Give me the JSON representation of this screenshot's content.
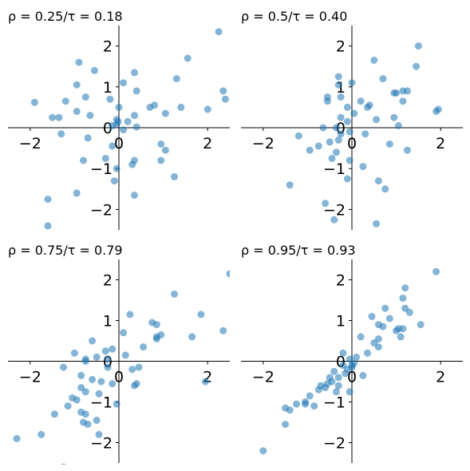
{
  "chart_data": [
    {
      "type": "scatter",
      "title": "ρ = 0.25/τ = 0.18",
      "xlim": [
        -2.5,
        2.5
      ],
      "ylim": [
        -2.5,
        2.5
      ],
      "xticks": [
        "−2",
        "0",
        "2"
      ],
      "yticks": [
        "−2",
        "−1",
        "0",
        "1",
        "2"
      ],
      "marker_color": "#1f77b4",
      "points": [
        [
          2.25,
          2.35
        ],
        [
          1.55,
          1.7
        ],
        [
          -0.9,
          1.6
        ],
        [
          -0.55,
          1.4
        ],
        [
          0.35,
          1.35
        ],
        [
          1.3,
          1.2
        ],
        [
          0.1,
          1.1
        ],
        [
          -0.95,
          1.05
        ],
        [
          0.4,
          0.9
        ],
        [
          2.35,
          0.9
        ],
        [
          -0.75,
          0.75
        ],
        [
          -0.2,
          0.7
        ],
        [
          2.4,
          0.7
        ],
        [
          -1.2,
          0.65
        ],
        [
          -1.9,
          0.62
        ],
        [
          0.8,
          0.55
        ],
        [
          0.7,
          0.5
        ],
        [
          1.4,
          0.5
        ],
        [
          2.0,
          0.45
        ],
        [
          0.0,
          0.5
        ],
        [
          -0.05,
          0.2
        ],
        [
          -0.95,
          0.4
        ],
        [
          1.05,
          0.35
        ],
        [
          -0.65,
          0.3
        ],
        [
          0.35,
          0.3
        ],
        [
          -1.5,
          0.25
        ],
        [
          -1.35,
          0.25
        ],
        [
          0.2,
          0.15
        ],
        [
          -0.02,
          0.15
        ],
        [
          -0.05,
          0.08
        ],
        [
          0.4,
          0.02
        ],
        [
          -0.15,
          0.05
        ],
        [
          0.1,
          -0.05
        ],
        [
          -1.3,
          -0.15
        ],
        [
          -0.7,
          -0.25
        ],
        [
          0.95,
          -0.4
        ],
        [
          -0.15,
          -0.45
        ],
        [
          1.05,
          -0.55
        ],
        [
          -0.3,
          -0.75
        ],
        [
          -0.8,
          -0.8
        ],
        [
          0.95,
          -0.8
        ],
        [
          0.35,
          -0.8
        ],
        [
          0.3,
          -0.9
        ],
        [
          -0.05,
          -1.0
        ],
        [
          1.25,
          -1.2
        ],
        [
          -0.1,
          -1.3
        ],
        [
          0.35,
          -1.65
        ],
        [
          -0.95,
          -1.6
        ],
        [
          -1.6,
          -1.75
        ],
        [
          -1.6,
          -2.4
        ]
      ]
    },
    {
      "type": "scatter",
      "title": "ρ = 0.5/τ = 0.40",
      "xlim": [
        -2.5,
        2.5
      ],
      "ylim": [
        -2.5,
        2.5
      ],
      "xticks": [
        "−2",
        "0",
        "2"
      ],
      "yticks": [
        "−2",
        "−1",
        "0",
        "1",
        "2"
      ],
      "marker_color": "#1f77b4",
      "points": [
        [
          1.5,
          2.0
        ],
        [
          0.5,
          1.65
        ],
        [
          1.45,
          1.5
        ],
        [
          -0.3,
          1.25
        ],
        [
          0.7,
          1.2
        ],
        [
          0.0,
          1.1
        ],
        [
          -0.3,
          1.05
        ],
        [
          0.95,
          0.85
        ],
        [
          1.15,
          0.9
        ],
        [
          1.25,
          0.9
        ],
        [
          1.0,
          0.85
        ],
        [
          -0.55,
          0.75
        ],
        [
          -0.25,
          0.75
        ],
        [
          -0.55,
          0.65
        ],
        [
          0.2,
          0.65
        ],
        [
          1.15,
          0.65
        ],
        [
          0.4,
          0.55
        ],
        [
          0.35,
          0.5
        ],
        [
          -0.1,
          0.5
        ],
        [
          1.95,
          0.45
        ],
        [
          1.9,
          0.4
        ],
        [
          0.05,
          0.35
        ],
        [
          -0.25,
          0.25
        ],
        [
          0.55,
          0.2
        ],
        [
          0.95,
          0.25
        ],
        [
          -0.1,
          0.15
        ],
        [
          1.05,
          0.05
        ],
        [
          -0.35,
          0.0
        ],
        [
          -0.65,
          0.0
        ],
        [
          -0.25,
          -0.15
        ],
        [
          -0.05,
          -0.1
        ],
        [
          -1.2,
          -0.2
        ],
        [
          -0.3,
          -0.3
        ],
        [
          0.3,
          -0.15
        ],
        [
          -0.5,
          -0.35
        ],
        [
          -0.75,
          -0.45
        ],
        [
          -0.95,
          -0.55
        ],
        [
          0.85,
          -0.4
        ],
        [
          1.25,
          -0.55
        ],
        [
          -0.35,
          -0.6
        ],
        [
          -0.45,
          -0.75
        ],
        [
          -0.05,
          -0.8
        ],
        [
          0.25,
          -0.95
        ],
        [
          -0.1,
          -1.25
        ],
        [
          0.6,
          -1.3
        ],
        [
          0.75,
          -1.5
        ],
        [
          -1.4,
          -1.4
        ],
        [
          -0.6,
          -1.85
        ],
        [
          -0.4,
          -2.25
        ],
        [
          0.55,
          -2.35
        ]
      ]
    },
    {
      "type": "scatter",
      "title": "ρ = 0.75/τ = 0.79",
      "xlim": [
        -2.5,
        2.5
      ],
      "ylim": [
        -2.5,
        2.5
      ],
      "xticks": [
        "−2",
        "0",
        "2"
      ],
      "yticks": [
        "−2",
        "−1",
        "0",
        "1",
        "2"
      ],
      "marker_color": "#1f77b4",
      "points": [
        [
          2.5,
          2.15
        ],
        [
          1.25,
          1.65
        ],
        [
          1.85,
          1.15
        ],
        [
          0.25,
          1.15
        ],
        [
          0.75,
          0.95
        ],
        [
          0.85,
          0.9
        ],
        [
          2.35,
          0.75
        ],
        [
          0.1,
          0.7
        ],
        [
          0.95,
          0.65
        ],
        [
          0.85,
          0.6
        ],
        [
          1.65,
          0.6
        ],
        [
          0.85,
          0.55
        ],
        [
          -0.6,
          0.5
        ],
        [
          0.55,
          0.35
        ],
        [
          -0.15,
          0.3
        ],
        [
          -0.3,
          0.25
        ],
        [
          -1.0,
          0.2
        ],
        [
          0.15,
          0.15
        ],
        [
          -0.5,
          0.1
        ],
        [
          -0.25,
          0.05
        ],
        [
          -0.75,
          0.05
        ],
        [
          -0.75,
          0.0
        ],
        [
          -0.25,
          -0.15
        ],
        [
          0.45,
          -0.15
        ],
        [
          0.3,
          -0.2
        ],
        [
          -1.25,
          -0.15
        ],
        [
          -0.85,
          -0.35
        ],
        [
          -0.6,
          -0.45
        ],
        [
          -0.4,
          -0.5
        ],
        [
          0.4,
          -0.55
        ],
        [
          0.35,
          -0.6
        ],
        [
          -0.15,
          -0.55
        ],
        [
          -0.85,
          -0.65
        ],
        [
          -0.75,
          -0.75
        ],
        [
          -0.45,
          -0.8
        ],
        [
          -1.05,
          -0.9
        ],
        [
          -0.95,
          -0.95
        ],
        [
          -0.05,
          -1.05
        ],
        [
          -0.85,
          -1.25
        ],
        [
          -0.75,
          -1.3
        ],
        [
          -0.8,
          -1.5
        ],
        [
          -0.5,
          -1.45
        ],
        [
          -0.45,
          -1.8
        ],
        [
          -1.45,
          -1.3
        ],
        [
          -1.75,
          -1.8
        ],
        [
          -2.3,
          -1.9
        ],
        [
          -1.25,
          -2.6
        ],
        [
          1.95,
          -0.5
        ],
        [
          -0.7,
          -1.55
        ],
        [
          -1.15,
          -1.1
        ]
      ]
    },
    {
      "type": "scatter",
      "title": "ρ = 0.95/τ = 0.93",
      "xlim": [
        -2.5,
        2.5
      ],
      "ylim": [
        -2.5,
        2.5
      ],
      "xticks": [
        "−2",
        "0",
        "2"
      ],
      "yticks": [
        "−2",
        "−1",
        "0",
        "1",
        "2"
      ],
      "marker_color": "#1f77b4",
      "points": [
        [
          1.9,
          2.2
        ],
        [
          1.2,
          1.8
        ],
        [
          1.15,
          1.55
        ],
        [
          0.75,
          1.3
        ],
        [
          1.2,
          1.3
        ],
        [
          1.3,
          1.2
        ],
        [
          0.45,
          1.1
        ],
        [
          0.85,
          1.05
        ],
        [
          0.6,
          0.9
        ],
        [
          1.05,
          0.8
        ],
        [
          1.15,
          0.8
        ],
        [
          1.55,
          0.9
        ],
        [
          0.7,
          0.85
        ],
        [
          1.0,
          0.75
        ],
        [
          0.2,
          0.6
        ],
        [
          1.1,
          0.6
        ],
        [
          0.6,
          0.55
        ],
        [
          0.5,
          0.45
        ],
        [
          0.6,
          0.35
        ],
        [
          0.35,
          0.2
        ],
        [
          0.1,
          0.1
        ],
        [
          -0.2,
          0.2
        ],
        [
          -0.05,
          0.05
        ],
        [
          -0.2,
          -0.1
        ],
        [
          0.0,
          -0.15
        ],
        [
          -0.4,
          -0.25
        ],
        [
          -0.15,
          -0.3
        ],
        [
          0.25,
          -0.35
        ],
        [
          -0.3,
          -0.4
        ],
        [
          -0.5,
          -0.4
        ],
        [
          -0.55,
          -0.55
        ],
        [
          -0.3,
          -0.6
        ],
        [
          -0.75,
          -0.7
        ],
        [
          -0.6,
          -0.65
        ],
        [
          -0.35,
          -0.75
        ],
        [
          -0.05,
          -0.75
        ],
        [
          -0.95,
          -0.85
        ],
        [
          -1.05,
          -1.0
        ],
        [
          -1.05,
          -1.05
        ],
        [
          -0.85,
          -1.1
        ],
        [
          -1.25,
          -1.05
        ],
        [
          -1.5,
          -1.15
        ],
        [
          -1.4,
          -1.2
        ],
        [
          -1.5,
          -1.55
        ],
        [
          -2.0,
          -2.2
        ],
        [
          0.0,
          -0.1
        ],
        [
          -0.45,
          -0.5
        ],
        [
          -0.1,
          -0.2
        ],
        [
          0.05,
          -0.05
        ],
        [
          -0.7,
          -0.6
        ]
      ]
    }
  ]
}
